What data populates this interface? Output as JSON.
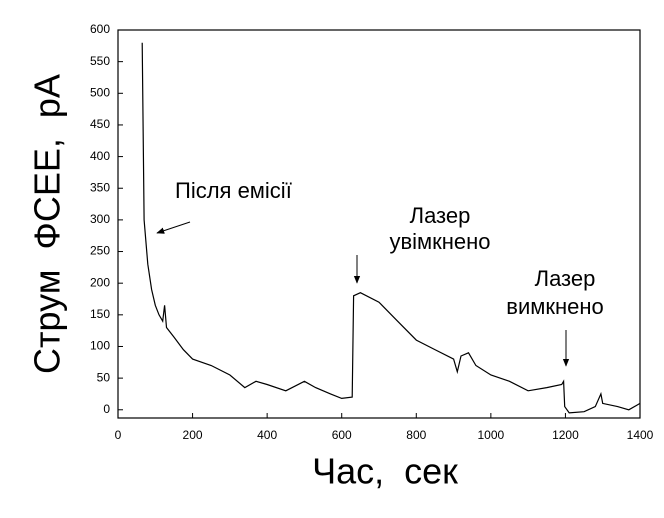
{
  "chart_data": {
    "type": "line",
    "y_label": "Струм ФСЕЕ, pA",
    "x_label": "Час, сек",
    "annotations": [
      [
        "Після емісії"
      ],
      [
        "Лазер",
        "увімкнено"
      ],
      [
        "Лазер",
        "вимкнено"
      ]
    ],
    "color": "#000000",
    "x": [
      65,
      70,
      80,
      90,
      100,
      110,
      120,
      125,
      130,
      150,
      175,
      200,
      250,
      300,
      340,
      370,
      400,
      450,
      500,
      530,
      570,
      600,
      628,
      632,
      650,
      700,
      750,
      800,
      850,
      900,
      910,
      920,
      940,
      960,
      1000,
      1050,
      1100,
      1150,
      1190,
      1195,
      1198,
      1210,
      1250,
      1280,
      1295,
      1300,
      1340,
      1370,
      1400
    ],
    "values": [
      580,
      300,
      230,
      190,
      165,
      150,
      140,
      165,
      130,
      115,
      95,
      80,
      70,
      55,
      35,
      45,
      40,
      30,
      45,
      35,
      25,
      18,
      20,
      180,
      185,
      170,
      140,
      110,
      95,
      80,
      60,
      85,
      90,
      70,
      55,
      45,
      30,
      35,
      40,
      45,
      5,
      -5,
      -3,
      5,
      25,
      10,
      5,
      0,
      10
    ],
    "xlim": [
      0,
      1400
    ],
    "xticks": [
      0,
      200,
      400,
      600,
      800,
      1000,
      1200,
      1400
    ],
    "ylim": [
      -13,
      600
    ],
    "yticks": [
      0,
      50,
      100,
      150,
      200,
      250,
      300,
      350,
      400,
      450,
      500,
      550,
      600
    ]
  }
}
